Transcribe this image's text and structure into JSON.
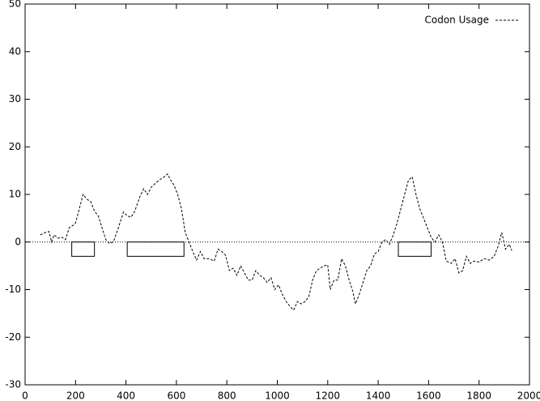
{
  "chart_data": {
    "type": "line",
    "x": [
      60,
      80,
      95,
      105,
      115,
      130,
      145,
      160,
      175,
      190,
      200,
      215,
      230,
      245,
      260,
      275,
      290,
      305,
      320,
      335,
      350,
      370,
      390,
      405,
      420,
      435,
      455,
      470,
      485,
      500,
      520,
      540,
      555,
      565,
      575,
      590,
      605,
      620,
      635,
      650,
      665,
      680,
      695,
      710,
      730,
      750,
      765,
      780,
      795,
      810,
      825,
      840,
      855,
      870,
      885,
      900,
      915,
      930,
      945,
      960,
      975,
      990,
      1005,
      1020,
      1035,
      1050,
      1065,
      1080,
      1095,
      1110,
      1125,
      1140,
      1155,
      1170,
      1185,
      1200,
      1210,
      1225,
      1240,
      1255,
      1270,
      1285,
      1300,
      1310,
      1325,
      1340,
      1355,
      1370,
      1385,
      1400,
      1415,
      1430,
      1445,
      1460,
      1475,
      1490,
      1505,
      1520,
      1535,
      1550,
      1565,
      1580,
      1595,
      1610,
      1625,
      1640,
      1655,
      1670,
      1690,
      1705,
      1720,
      1735,
      1750,
      1765,
      1780,
      1800,
      1820,
      1840,
      1860,
      1875,
      1890,
      1905,
      1920,
      1930
    ],
    "series": [
      {
        "name": "Codon Usage",
        "color": "#000000",
        "values": [
          1.5,
          2,
          2.2,
          0,
          1.5,
          0.8,
          1,
          0.5,
          3,
          3.5,
          4,
          7,
          10,
          9,
          8.5,
          6.5,
          5.5,
          3,
          0.5,
          -0.3,
          0,
          3,
          6.3,
          5.5,
          5.2,
          6.5,
          9.5,
          11.2,
          10,
          11.5,
          12.5,
          13.3,
          13.8,
          14.3,
          13.2,
          12,
          10,
          7,
          2,
          0,
          -2,
          -3.8,
          -2,
          -3.5,
          -3.5,
          -4,
          -1.5,
          -2,
          -2.8,
          -6,
          -5.5,
          -7,
          -5,
          -6.5,
          -8,
          -8,
          -6,
          -7,
          -7.5,
          -8.5,
          -7.5,
          -10,
          -9,
          -11,
          -12.5,
          -13.5,
          -14.3,
          -12.5,
          -13,
          -12.5,
          -11.5,
          -8,
          -6,
          -5.5,
          -5,
          -4.8,
          -10,
          -8,
          -8,
          -3.5,
          -5,
          -8,
          -10.5,
          -13,
          -11,
          -8.5,
          -6,
          -5,
          -2.5,
          -2,
          0,
          0.5,
          -0.5,
          1.5,
          4,
          7,
          10,
          13,
          13.7,
          10,
          7,
          5,
          3,
          1,
          0,
          1.5,
          0,
          -4,
          -4.5,
          -3.5,
          -6.5,
          -6,
          -3,
          -4.5,
          -4,
          -4.2,
          -3.5,
          -3.8,
          -3,
          -1,
          2,
          -1.5,
          -0.5,
          -1.8
        ]
      }
    ],
    "boxes": [
      {
        "x": [
          185,
          275
        ],
        "y": [
          0,
          -3
        ]
      },
      {
        "x": [
          405,
          630
        ],
        "y": [
          0,
          -3
        ]
      },
      {
        "x": [
          1480,
          1610
        ],
        "y": [
          0,
          -3
        ]
      }
    ],
    "xlim": [
      0,
      2000
    ],
    "xticks": [
      0,
      200,
      400,
      600,
      800,
      1000,
      1200,
      1400,
      1600,
      1800,
      2000
    ],
    "ylim": [
      -30,
      50
    ],
    "yticks": [
      -30,
      -20,
      -10,
      0,
      10,
      20,
      30,
      40,
      50
    ],
    "zeroaxis": true,
    "legend": "top-right"
  }
}
